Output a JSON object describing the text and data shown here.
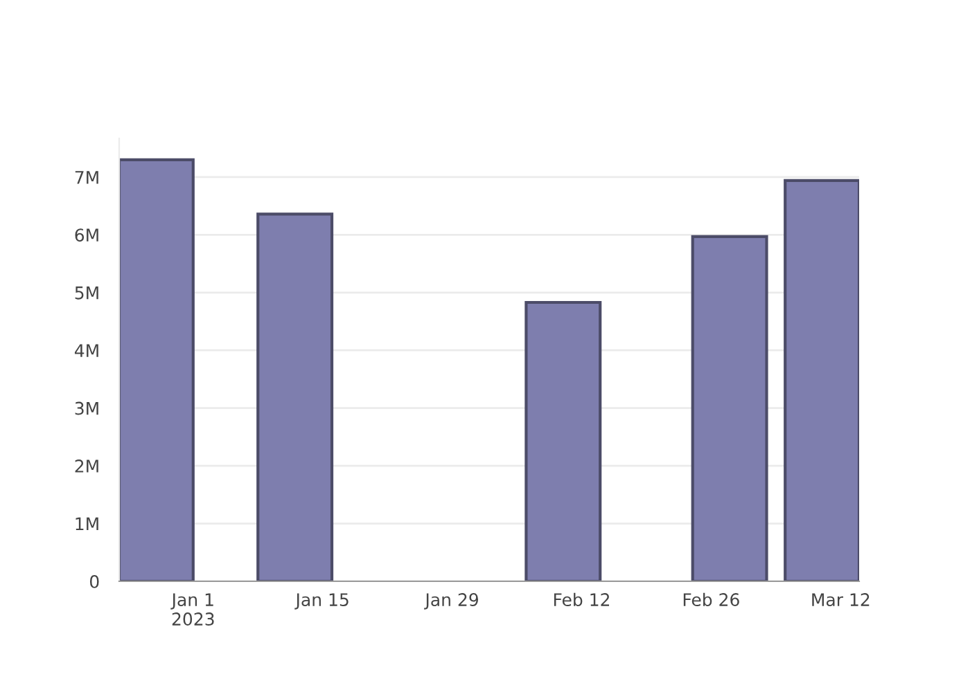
{
  "chart_data": {
    "type": "bar",
    "x": [
      "2022-12-28",
      "2023-01-12",
      "2023-02-10",
      "2023-02-28",
      "2023-03-10"
    ],
    "values": [
      7300000,
      6360000,
      4830000,
      5970000,
      6940000
    ],
    "color": "#7e7eae",
    "xlim": [
      "2022-12-24",
      "2023-03-14"
    ],
    "xticks": [
      {
        "value": "2023-01-01",
        "label": "Jan 1\n2023"
      },
      {
        "value": "2023-01-15",
        "label": "Jan 15"
      },
      {
        "value": "2023-01-29",
        "label": "Jan 29"
      },
      {
        "value": "2023-02-12",
        "label": "Feb 12"
      },
      {
        "value": "2023-02-26",
        "label": "Feb 26"
      },
      {
        "value": "2023-03-12",
        "label": "Mar 12"
      }
    ],
    "ylim": [
      0,
      7670000
    ],
    "yticks": [
      {
        "value": 0,
        "label": "0"
      },
      {
        "value": 1000000,
        "label": "1M"
      },
      {
        "value": 2000000,
        "label": "2M"
      },
      {
        "value": 3000000,
        "label": "3M"
      },
      {
        "value": 4000000,
        "label": "4M"
      },
      {
        "value": 5000000,
        "label": "5M"
      },
      {
        "value": 6000000,
        "label": "6M"
      },
      {
        "value": 7000000,
        "label": "7M"
      }
    ],
    "grid": "y"
  }
}
